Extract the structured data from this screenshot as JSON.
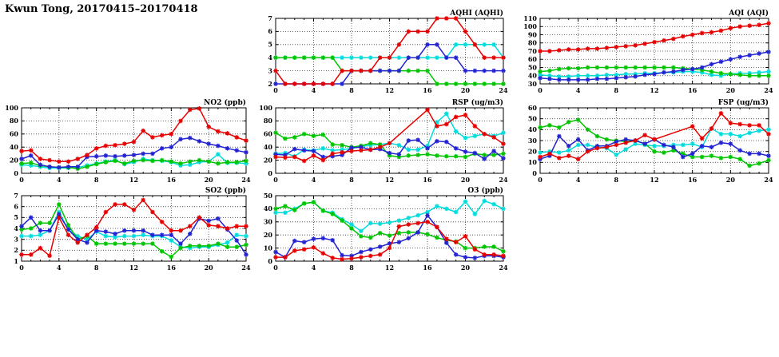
{
  "page_title": "Kwun Tong, 20170415–20170418",
  "colors": {
    "red": "#e60000",
    "blue": "#2323d1",
    "green": "#00c400",
    "cyan": "#00dcdc",
    "grid": "#3a3a3a",
    "axis": "#000000",
    "background": "#ffffff"
  },
  "chart_data": [
    {
      "id": "aqhi",
      "type": "line",
      "title": "AQHI (AQHI)",
      "xlabel": "",
      "ylabel": "",
      "x_range": [
        0,
        24
      ],
      "x_ticks": [
        0,
        4,
        8,
        12,
        16,
        20,
        24
      ],
      "ylim": [
        2,
        7
      ],
      "yticks": [
        2,
        3,
        4,
        5,
        6,
        7
      ],
      "grid": true,
      "legend": "none",
      "series": [
        {
          "name": "cyan",
          "color_key": "cyan",
          "values": [
            4,
            4,
            4,
            4,
            4,
            4,
            4,
            4,
            4,
            4,
            4,
            4,
            4,
            4,
            4,
            4,
            4,
            4,
            4,
            5,
            5,
            5,
            5,
            5,
            4
          ]
        },
        {
          "name": "green",
          "color_key": "green",
          "values": [
            4,
            4,
            4,
            4,
            4,
            4,
            4,
            3,
            3,
            3,
            3,
            3,
            3,
            3,
            3,
            3,
            3,
            2,
            2,
            2,
            2,
            2,
            2,
            2,
            2
          ]
        },
        {
          "name": "blue",
          "color_key": "blue",
          "values": [
            2,
            2,
            2,
            2,
            2,
            2,
            2,
            2,
            3,
            3,
            3,
            3,
            3,
            3,
            4,
            4,
            5,
            5,
            4,
            4,
            3,
            3,
            3,
            3,
            3
          ]
        },
        {
          "name": "red",
          "color_key": "red",
          "values": [
            3,
            2,
            2,
            2,
            2,
            2,
            2,
            3,
            3,
            3,
            3,
            4,
            4,
            5,
            6,
            6,
            6,
            7,
            7,
            7,
            6,
            5,
            4,
            4,
            4
          ]
        }
      ]
    },
    {
      "id": "aqi",
      "type": "line",
      "title": "AQI (AQI)",
      "xlabel": "",
      "ylabel": "",
      "x_range": [
        0,
        24
      ],
      "x_ticks": [
        0,
        4,
        8,
        12,
        16,
        20,
        24
      ],
      "ylim": [
        30,
        110
      ],
      "yticks": [
        30,
        40,
        50,
        60,
        70,
        80,
        90,
        100,
        110
      ],
      "grid": true,
      "legend": "none",
      "series": [
        {
          "name": "cyan",
          "color_key": "cyan",
          "values": [
            41,
            40,
            39,
            39,
            40,
            40,
            40,
            41,
            41,
            42,
            42,
            43,
            43,
            44,
            44,
            45,
            45,
            44,
            41,
            40,
            42,
            43,
            43,
            44,
            45
          ]
        },
        {
          "name": "green",
          "color_key": "green",
          "values": [
            45,
            46,
            48,
            49,
            49,
            50,
            50,
            50,
            50,
            50,
            50,
            50,
            50,
            50,
            50,
            49,
            48,
            47,
            45,
            43,
            42,
            41,
            40,
            40,
            40
          ]
        },
        {
          "name": "blue",
          "color_key": "blue",
          "values": [
            37,
            36,
            35,
            35,
            35,
            35,
            36,
            36,
            37,
            38,
            39,
            41,
            42,
            44,
            45,
            47,
            48,
            50,
            54,
            57,
            60,
            63,
            65,
            67,
            69
          ]
        },
        {
          "name": "red",
          "color_key": "red",
          "values": [
            70,
            70,
            71,
            72,
            72,
            73,
            73,
            74,
            75,
            76,
            77,
            79,
            81,
            83,
            85,
            88,
            90,
            92,
            93,
            95,
            98,
            100,
            101,
            102,
            104
          ]
        }
      ]
    },
    {
      "id": "no2",
      "type": "line",
      "title": "NO2 (ppb)",
      "xlabel": "",
      "ylabel": "",
      "x_range": [
        0,
        24
      ],
      "x_ticks": [
        0,
        4,
        8,
        12,
        16,
        20,
        24
      ],
      "ylim": [
        0,
        100
      ],
      "yticks": [
        0,
        20,
        40,
        60,
        80,
        100
      ],
      "grid": true,
      "legend": "none",
      "series": [
        {
          "name": "cyan",
          "color_key": "cyan",
          "values": [
            13,
            12,
            10,
            8,
            8,
            8,
            9,
            12,
            15,
            18,
            20,
            14,
            17,
            22,
            20,
            19,
            17,
            12,
            13,
            17,
            18,
            29,
            16,
            16,
            15
          ]
        },
        {
          "name": "green",
          "color_key": "green",
          "values": [
            15,
            16,
            12,
            10,
            9,
            9,
            7,
            10,
            14,
            17,
            19,
            15,
            19,
            20,
            19,
            20,
            18,
            15,
            18,
            20,
            18,
            15,
            17,
            17,
            19
          ]
        },
        {
          "name": "blue",
          "color_key": "blue",
          "values": [
            22,
            27,
            13,
            10,
            9,
            10,
            10,
            25,
            26,
            27,
            26,
            27,
            28,
            30,
            30,
            38,
            40,
            52,
            54,
            49,
            45,
            42,
            38,
            35,
            32
          ]
        },
        {
          "name": "red",
          "color_key": "red",
          "values": [
            34,
            35,
            22,
            20,
            18,
            18,
            22,
            28,
            38,
            42,
            43,
            45,
            48,
            65,
            55,
            58,
            60,
            80,
            97,
            99,
            71,
            64,
            61,
            55,
            50
          ]
        }
      ]
    },
    {
      "id": "rsp",
      "type": "line",
      "title": "RSP (ug/m3)",
      "xlabel": "",
      "ylabel": "",
      "x_range": [
        0,
        24
      ],
      "x_ticks": [
        0,
        4,
        8,
        12,
        16,
        20,
        24
      ],
      "ylim": [
        0,
        100
      ],
      "yticks": [
        0,
        20,
        40,
        60,
        80,
        100
      ],
      "grid": true,
      "legend": "none",
      "series": [
        {
          "name": "cyan",
          "color_key": "cyan",
          "values": [
            30,
            31,
            26,
            36,
            35,
            38,
            35,
            36,
            38,
            41,
            43,
            44,
            46,
            43,
            36,
            36,
            42,
            78,
            91,
            64,
            54,
            57,
            60,
            57,
            62
          ]
        },
        {
          "name": "green",
          "color_key": "green",
          "values": [
            62,
            53,
            55,
            60,
            57,
            59,
            44,
            43,
            40,
            42,
            46,
            44,
            27,
            25,
            27,
            28,
            29,
            27,
            26,
            26,
            25,
            30,
            28,
            28,
            30
          ]
        },
        {
          "name": "blue",
          "color_key": "blue",
          "values": [
            29,
            28,
            37,
            35,
            34,
            25,
            26,
            28,
            39,
            40,
            36,
            37,
            31,
            29,
            50,
            51,
            38,
            49,
            48,
            38,
            33,
            31,
            22,
            34,
            23
          ]
        },
        {
          "name": "red",
          "color_key": "red",
          "values": [
            25,
            24,
            25,
            19,
            27,
            20,
            30,
            32,
            34,
            35,
            36,
            40,
            46,
            null,
            null,
            null,
            97,
            72,
            75,
            86,
            89,
            72,
            60,
            55,
            45
          ]
        }
      ]
    },
    {
      "id": "fsp",
      "type": "line",
      "title": "FSP (ug/m3)",
      "xlabel": "",
      "ylabel": "",
      "x_range": [
        0,
        24
      ],
      "x_ticks": [
        0,
        4,
        8,
        12,
        16,
        20,
        24
      ],
      "ylim": [
        0,
        60
      ],
      "yticks": [
        0,
        10,
        20,
        30,
        40,
        50,
        60
      ],
      "grid": true,
      "legend": "none",
      "series": [
        {
          "name": "cyan",
          "color_key": "cyan",
          "values": [
            19,
            20,
            19,
            21,
            26,
            26,
            24,
            23,
            17,
            22,
            27,
            26,
            25,
            25,
            26,
            26,
            27,
            24,
            41,
            36,
            36,
            34,
            37,
            39,
            40
          ]
        },
        {
          "name": "green",
          "color_key": "green",
          "values": [
            42,
            44,
            42,
            47,
            49,
            40,
            34,
            31,
            30,
            29,
            30,
            27,
            20,
            19,
            21,
            18,
            15,
            15,
            16,
            14,
            15,
            13,
            7,
            9,
            12
          ]
        },
        {
          "name": "blue",
          "color_key": "blue",
          "values": [
            13,
            16,
            34,
            25,
            31,
            21,
            25,
            25,
            29,
            31,
            30,
            27,
            31,
            26,
            24,
            15,
            18,
            25,
            24,
            28,
            27,
            21,
            18,
            18,
            16
          ]
        },
        {
          "name": "red",
          "color_key": "red",
          "values": [
            15,
            18,
            14,
            16,
            13,
            20,
            23,
            24,
            26,
            28,
            30,
            35,
            31,
            null,
            null,
            null,
            43,
            32,
            41,
            55,
            46,
            45,
            44,
            44,
            36
          ]
        }
      ]
    },
    {
      "id": "so2",
      "type": "line",
      "title": "SO2 (ppb)",
      "xlabel": "",
      "ylabel": "",
      "x_range": [
        0,
        24
      ],
      "x_ticks": [
        0,
        4,
        8,
        12,
        16,
        20,
        24
      ],
      "ylim": [
        1,
        7
      ],
      "yticks": [
        1,
        2,
        3,
        4,
        5,
        6,
        7
      ],
      "grid": true,
      "legend": "none",
      "series": [
        {
          "name": "cyan",
          "color_key": "cyan",
          "values": [
            3.3,
            3.3,
            3.4,
            3.8,
            5.5,
            3.9,
            3.3,
            3.0,
            3.7,
            3.3,
            3.2,
            3.3,
            3.3,
            3.4,
            3.3,
            3.3,
            2.9,
            2.3,
            2.2,
            2.3,
            2.3,
            2.5,
            2.7,
            3.4,
            3.3
          ]
        },
        {
          "name": "green",
          "color_key": "green",
          "values": [
            3.9,
            4.0,
            4.5,
            4.5,
            6.2,
            4.3,
            3.0,
            3.3,
            2.6,
            2.6,
            2.6,
            2.6,
            2.6,
            2.6,
            2.6,
            1.9,
            1.4,
            2.2,
            2.4,
            2.4,
            2.4,
            2.6,
            2.3,
            2.3,
            2.5
          ]
        },
        {
          "name": "blue",
          "color_key": "blue",
          "values": [
            4.2,
            5.0,
            3.8,
            3.8,
            5.3,
            3.9,
            3.0,
            2.7,
            3.8,
            3.7,
            3.5,
            3.8,
            3.8,
            3.8,
            3.4,
            3.4,
            3.4,
            2.6,
            3.5,
            4.9,
            4.7,
            4.9,
            3.9,
            2.9,
            1.6
          ]
        },
        {
          "name": "red",
          "color_key": "red",
          "values": [
            1.6,
            1.6,
            2.2,
            1.5,
            5.0,
            3.4,
            2.7,
            3.4,
            4.1,
            5.5,
            6.2,
            6.2,
            5.7,
            6.6,
            5.5,
            4.6,
            3.8,
            3.8,
            4.2,
            5.0,
            4.3,
            4.2,
            4.0,
            4.2,
            4.2
          ]
        }
      ]
    },
    {
      "id": "o3",
      "type": "line",
      "title": "O3 (ppb)",
      "xlabel": "",
      "ylabel": "",
      "x_range": [
        0,
        24
      ],
      "x_ticks": [
        0,
        4,
        8,
        12,
        16,
        20,
        24
      ],
      "ylim": [
        0,
        50
      ],
      "yticks": [
        0,
        10,
        20,
        30,
        40,
        50
      ],
      "grid": true,
      "legend": "none",
      "series": [
        {
          "name": "cyan",
          "color_key": "cyan",
          "values": [
            37,
            37,
            40,
            44,
            45,
            38.5,
            37,
            32,
            28,
            23,
            29,
            28.5,
            29.5,
            31,
            33,
            35,
            37.5,
            42,
            40,
            37.5,
            45.5,
            36,
            46,
            43.5,
            40
          ]
        },
        {
          "name": "green",
          "color_key": "green",
          "values": [
            40,
            42,
            39,
            44,
            45,
            38.5,
            36,
            31,
            25,
            19,
            18,
            21.5,
            19.5,
            21.5,
            22,
            22,
            20.5,
            18,
            16,
            15,
            10,
            10,
            11,
            11,
            7.5
          ]
        },
        {
          "name": "blue",
          "color_key": "blue",
          "values": [
            7,
            3,
            15.5,
            14.5,
            17,
            17.5,
            16,
            4.5,
            4,
            7,
            9,
            11,
            13.5,
            14.5,
            17.5,
            22,
            35,
            26,
            14,
            5,
            3,
            2.5,
            4,
            4,
            3
          ]
        },
        {
          "name": "red",
          "color_key": "red",
          "values": [
            3,
            3,
            8,
            9,
            10.5,
            6,
            2.5,
            1.5,
            2,
            3,
            4,
            5,
            10,
            26.5,
            28,
            29,
            30,
            26,
            17,
            14.5,
            19,
            9,
            5,
            5,
            4
          ]
        }
      ]
    }
  ]
}
